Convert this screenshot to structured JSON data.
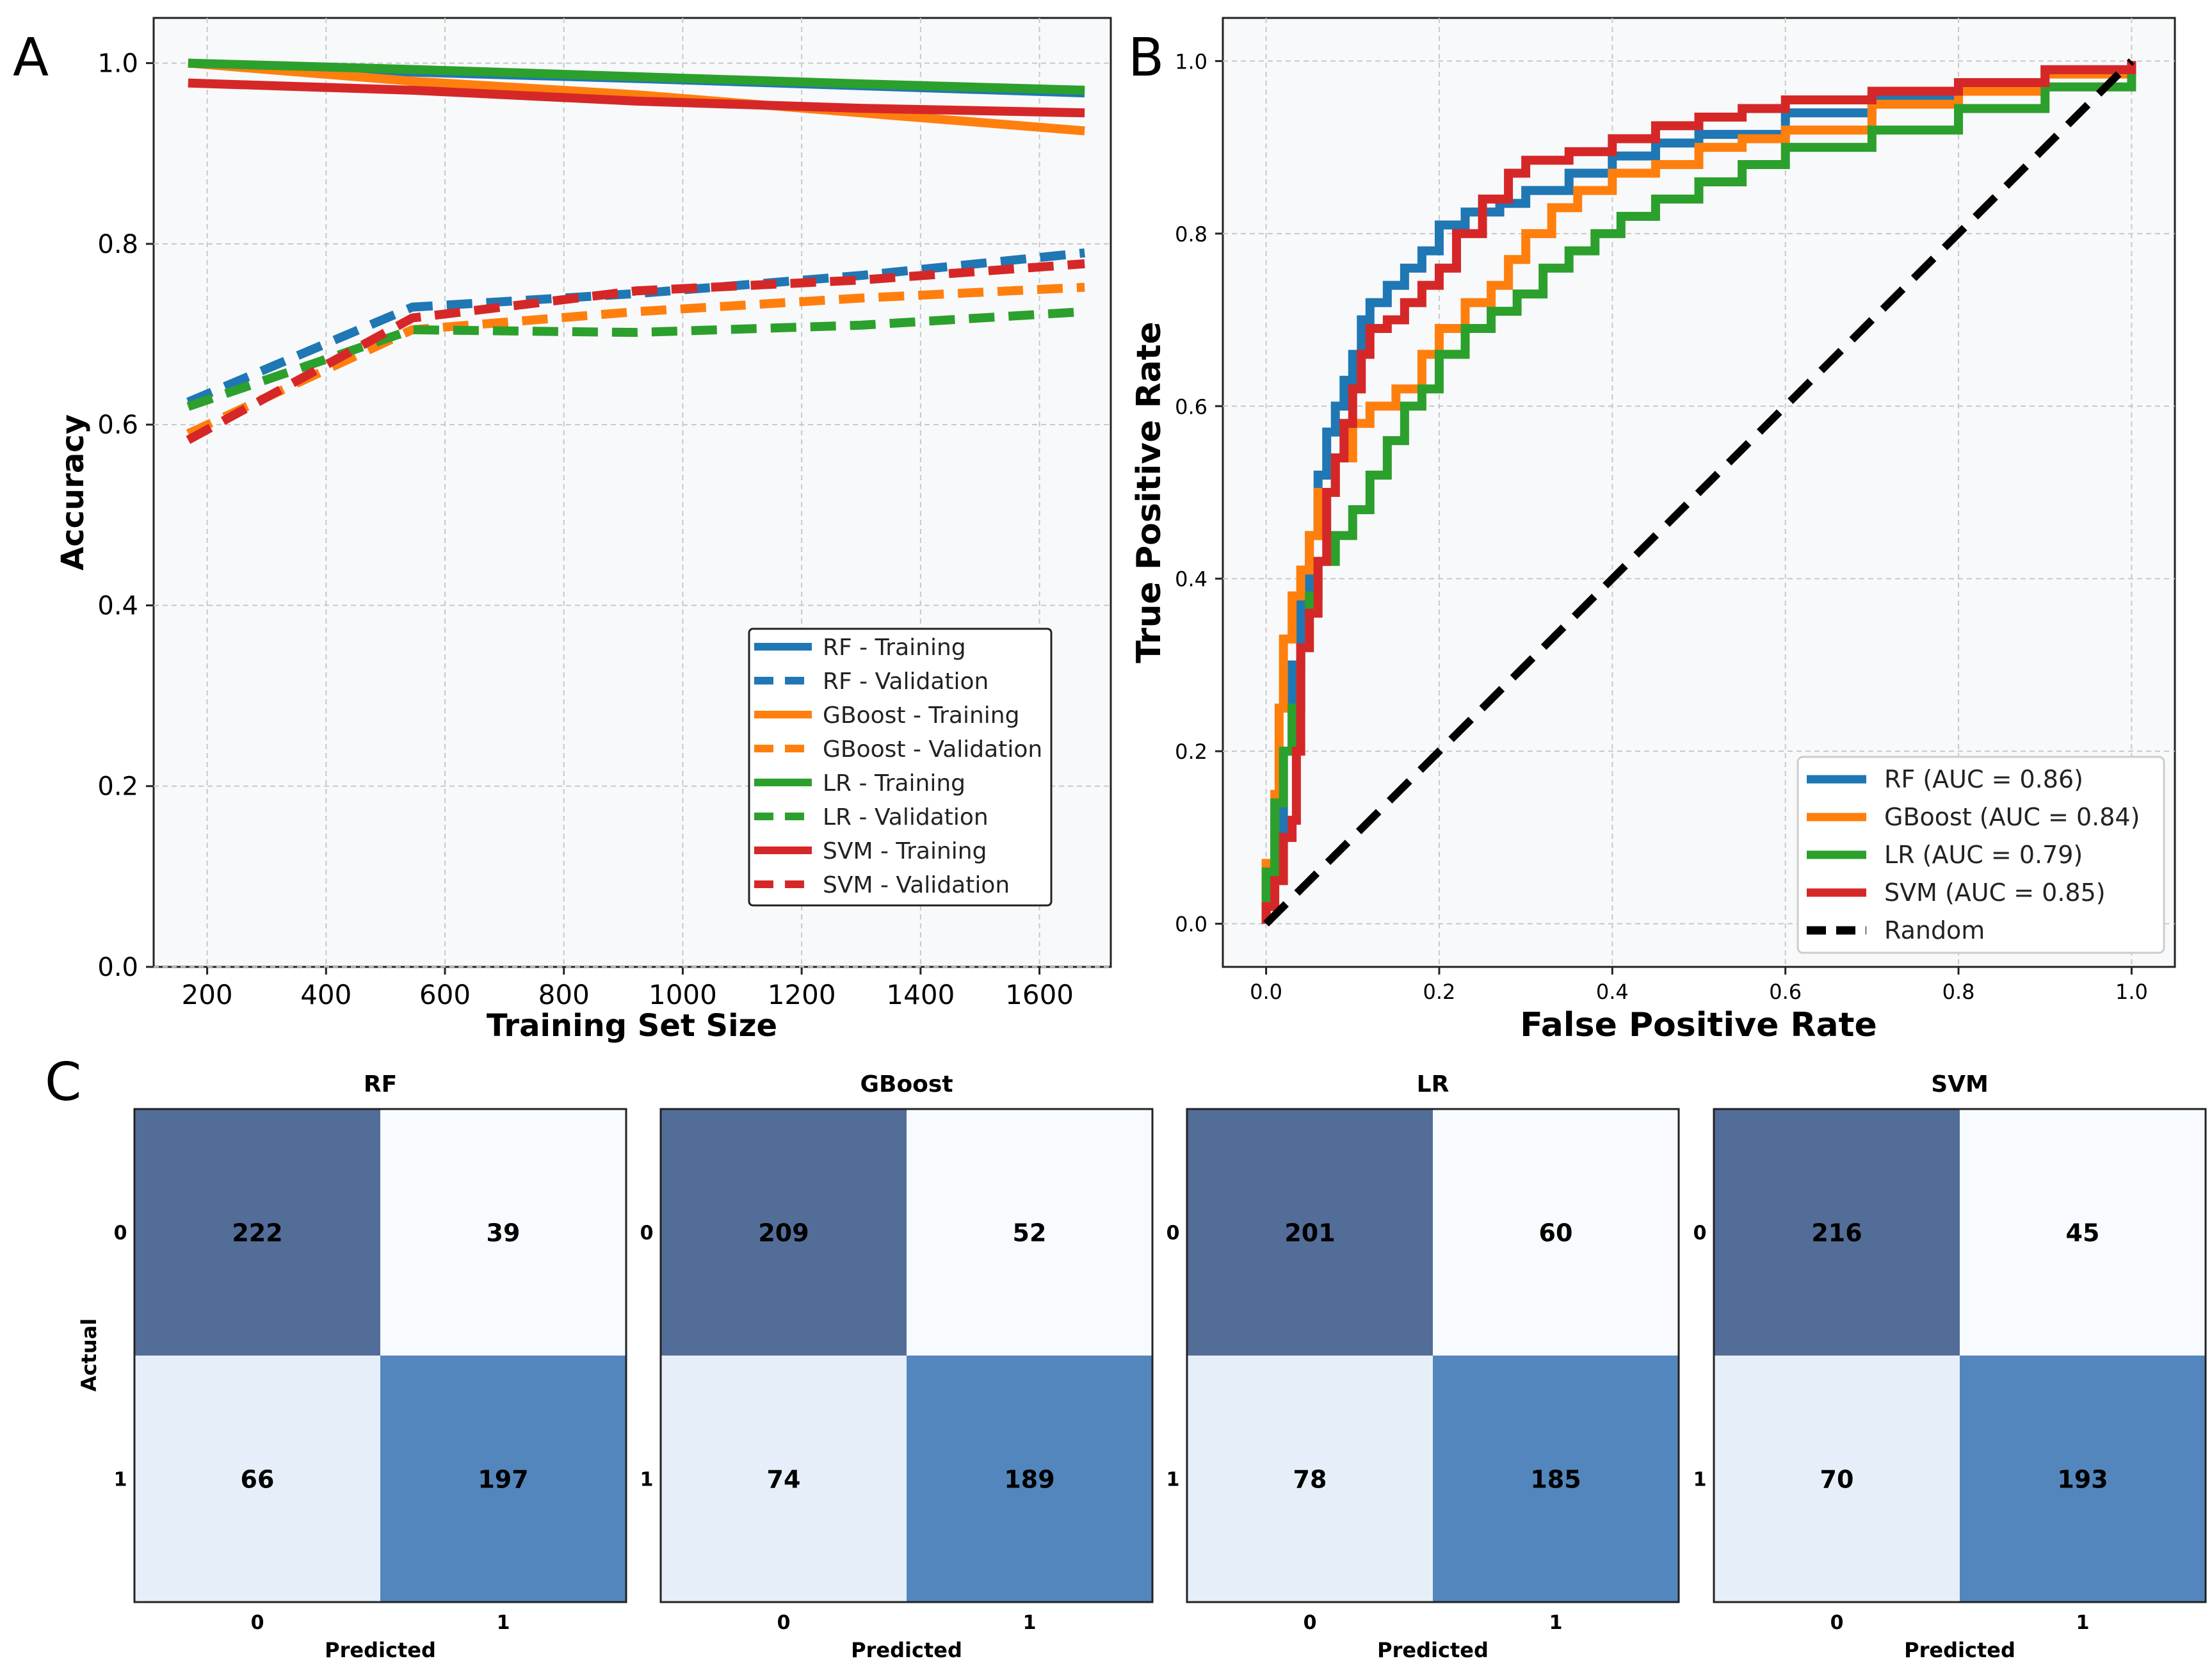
{
  "panels": {
    "a": "A",
    "b": "B",
    "c": "C"
  },
  "chart_data": [
    {
      "type": "line",
      "panel": "A",
      "xlabel": "Training Set Size",
      "ylabel": "Accuracy",
      "xlim": [
        110,
        1720
      ],
      "ylim": [
        0.0,
        1.05
      ],
      "xticks": [
        200,
        400,
        600,
        800,
        1000,
        1200,
        1400,
        1600
      ],
      "xtick_labels": [
        "200",
        "400",
        "600",
        "800",
        "1000",
        "1200",
        "1400",
        "1600"
      ],
      "yticks": [
        0.0,
        0.2,
        0.4,
        0.6,
        0.8,
        1.0
      ],
      "ytick_labels": [
        "0.0",
        "0.2",
        "0.4",
        "0.6",
        "0.8",
        "1.0"
      ],
      "grid": true,
      "legend_position": "lower-right",
      "x": [
        168,
        545,
        922,
        1299,
        1676
      ],
      "series": [
        {
          "name": "RF - Training",
          "color": "#1f77b4",
          "style": "solid",
          "values": [
            1.0,
            0.99,
            0.983,
            0.975,
            0.967
          ]
        },
        {
          "name": "RF - Validation",
          "color": "#1f77b4",
          "style": "dashed",
          "values": [
            0.625,
            0.73,
            0.745,
            0.765,
            0.79
          ]
        },
        {
          "name": "GBoost - Training",
          "color": "#ff7f0e",
          "style": "solid",
          "values": [
            1.0,
            0.98,
            0.965,
            0.945,
            0.925
          ]
        },
        {
          "name": "GBoost - Validation",
          "color": "#ff7f0e",
          "style": "dashed",
          "values": [
            0.59,
            0.705,
            0.725,
            0.74,
            0.752
          ]
        },
        {
          "name": "LR - Training",
          "color": "#2ca02c",
          "style": "solid",
          "values": [
            1.0,
            0.993,
            0.985,
            0.977,
            0.97
          ]
        },
        {
          "name": "LR - Validation",
          "color": "#2ca02c",
          "style": "dashed",
          "values": [
            0.62,
            0.705,
            0.702,
            0.71,
            0.725
          ]
        },
        {
          "name": "SVM - Training",
          "color": "#d62728",
          "style": "solid",
          "values": [
            0.978,
            0.97,
            0.958,
            0.95,
            0.945
          ]
        },
        {
          "name": "SVM - Validation",
          "color": "#d62728",
          "style": "dashed",
          "values": [
            0.583,
            0.718,
            0.748,
            0.76,
            0.778
          ]
        }
      ]
    },
    {
      "type": "line",
      "panel": "B",
      "xlabel": "False Positive Rate",
      "ylabel": "True Positive Rate",
      "xlim": [
        -0.05,
        1.05
      ],
      "ylim": [
        -0.05,
        1.05
      ],
      "xticks": [
        0.0,
        0.2,
        0.4,
        0.6,
        0.8,
        1.0
      ],
      "xtick_labels": [
        "0.0",
        "0.2",
        "0.4",
        "0.6",
        "0.8",
        "1.0"
      ],
      "yticks": [
        0.0,
        0.2,
        0.4,
        0.6,
        0.8,
        1.0
      ],
      "ytick_labels": [
        "0.0",
        "0.2",
        "0.4",
        "0.6",
        "0.8",
        "1.0"
      ],
      "grid": true,
      "legend_position": "lower-right",
      "series": [
        {
          "name": "RF (AUC = 0.86)",
          "color": "#1f77b4",
          "style": "solid",
          "points": [
            [
              0,
              0
            ],
            [
              0,
              0.05
            ],
            [
              0.01,
              0.1
            ],
            [
              0.02,
              0.2
            ],
            [
              0.03,
              0.3
            ],
            [
              0.04,
              0.38
            ],
            [
              0.05,
              0.45
            ],
            [
              0.06,
              0.52
            ],
            [
              0.07,
              0.57
            ],
            [
              0.08,
              0.6
            ],
            [
              0.09,
              0.63
            ],
            [
              0.1,
              0.66
            ],
            [
              0.11,
              0.7
            ],
            [
              0.12,
              0.72
            ],
            [
              0.14,
              0.74
            ],
            [
              0.16,
              0.76
            ],
            [
              0.18,
              0.78
            ],
            [
              0.2,
              0.81
            ],
            [
              0.23,
              0.825
            ],
            [
              0.27,
              0.835
            ],
            [
              0.3,
              0.85
            ],
            [
              0.35,
              0.87
            ],
            [
              0.4,
              0.89
            ],
            [
              0.45,
              0.905
            ],
            [
              0.5,
              0.915
            ],
            [
              0.6,
              0.94
            ],
            [
              0.7,
              0.96
            ],
            [
              0.8,
              0.975
            ],
            [
              0.9,
              0.99
            ],
            [
              1.0,
              1.0
            ]
          ]
        },
        {
          "name": "GBoost (AUC = 0.84)",
          "color": "#ff7f0e",
          "style": "solid",
          "points": [
            [
              0,
              0
            ],
            [
              0,
              0.07
            ],
            [
              0.01,
              0.15
            ],
            [
              0.015,
              0.25
            ],
            [
              0.02,
              0.33
            ],
            [
              0.03,
              0.38
            ],
            [
              0.04,
              0.41
            ],
            [
              0.05,
              0.45
            ],
            [
              0.06,
              0.5
            ],
            [
              0.08,
              0.54
            ],
            [
              0.1,
              0.58
            ],
            [
              0.12,
              0.6
            ],
            [
              0.15,
              0.62
            ],
            [
              0.18,
              0.66
            ],
            [
              0.2,
              0.69
            ],
            [
              0.23,
              0.72
            ],
            [
              0.26,
              0.74
            ],
            [
              0.28,
              0.77
            ],
            [
              0.3,
              0.8
            ],
            [
              0.33,
              0.83
            ],
            [
              0.36,
              0.85
            ],
            [
              0.4,
              0.87
            ],
            [
              0.45,
              0.88
            ],
            [
              0.5,
              0.9
            ],
            [
              0.55,
              0.91
            ],
            [
              0.6,
              0.92
            ],
            [
              0.7,
              0.95
            ],
            [
              0.8,
              0.965
            ],
            [
              0.9,
              0.985
            ],
            [
              1.0,
              1.0
            ]
          ]
        },
        {
          "name": "LR (AUC = 0.79)",
          "color": "#2ca02c",
          "style": "solid",
          "points": [
            [
              0,
              0
            ],
            [
              0,
              0.06
            ],
            [
              0.01,
              0.14
            ],
            [
              0.02,
              0.2
            ],
            [
              0.03,
              0.25
            ],
            [
              0.04,
              0.32
            ],
            [
              0.05,
              0.38
            ],
            [
              0.06,
              0.42
            ],
            [
              0.08,
              0.45
            ],
            [
              0.1,
              0.48
            ],
            [
              0.12,
              0.52
            ],
            [
              0.14,
              0.56
            ],
            [
              0.16,
              0.6
            ],
            [
              0.18,
              0.62
            ],
            [
              0.2,
              0.66
            ],
            [
              0.23,
              0.69
            ],
            [
              0.26,
              0.71
            ],
            [
              0.29,
              0.73
            ],
            [
              0.32,
              0.76
            ],
            [
              0.35,
              0.78
            ],
            [
              0.38,
              0.8
            ],
            [
              0.41,
              0.82
            ],
            [
              0.45,
              0.84
            ],
            [
              0.5,
              0.86
            ],
            [
              0.55,
              0.88
            ],
            [
              0.6,
              0.9
            ],
            [
              0.7,
              0.92
            ],
            [
              0.8,
              0.945
            ],
            [
              0.9,
              0.97
            ],
            [
              1.0,
              1.0
            ]
          ]
        },
        {
          "name": "SVM (AUC = 0.85)",
          "color": "#d62728",
          "style": "solid",
          "points": [
            [
              0,
              0
            ],
            [
              0,
              0.02
            ],
            [
              0.01,
              0.05
            ],
            [
              0.02,
              0.1
            ],
            [
              0.03,
              0.12
            ],
            [
              0.035,
              0.2
            ],
            [
              0.04,
              0.32
            ],
            [
              0.05,
              0.36
            ],
            [
              0.06,
              0.42
            ],
            [
              0.07,
              0.5
            ],
            [
              0.08,
              0.54
            ],
            [
              0.09,
              0.58
            ],
            [
              0.1,
              0.62
            ],
            [
              0.11,
              0.66
            ],
            [
              0.12,
              0.69
            ],
            [
              0.14,
              0.7
            ],
            [
              0.16,
              0.72
            ],
            [
              0.18,
              0.74
            ],
            [
              0.2,
              0.76
            ],
            [
              0.22,
              0.8
            ],
            [
              0.25,
              0.84
            ],
            [
              0.28,
              0.87
            ],
            [
              0.3,
              0.885
            ],
            [
              0.35,
              0.895
            ],
            [
              0.4,
              0.91
            ],
            [
              0.45,
              0.925
            ],
            [
              0.5,
              0.935
            ],
            [
              0.55,
              0.945
            ],
            [
              0.6,
              0.955
            ],
            [
              0.7,
              0.965
            ],
            [
              0.8,
              0.975
            ],
            [
              0.9,
              0.99
            ],
            [
              1.0,
              1.0
            ]
          ]
        },
        {
          "name": "Random",
          "color": "#000000",
          "style": "dashed",
          "points": [
            [
              0,
              0
            ],
            [
              1,
              1
            ]
          ]
        }
      ]
    },
    {
      "type": "heatmap",
      "panel": "C",
      "xlabel": "Predicted",
      "ylabel": "Actual",
      "tick_labels": [
        "0",
        "1"
      ],
      "matrices": [
        {
          "title": "RF",
          "values": [
            [
              222,
              39
            ],
            [
              66,
              197
            ]
          ]
        },
        {
          "title": "GBoost",
          "values": [
            [
              209,
              52
            ],
            [
              74,
              189
            ]
          ]
        },
        {
          "title": "LR",
          "values": [
            [
              201,
              60
            ],
            [
              78,
              185
            ]
          ]
        },
        {
          "title": "SVM",
          "values": [
            [
              216,
              45
            ],
            [
              70,
              193
            ]
          ]
        }
      ],
      "cell_colors": {
        "high": "#536d99",
        "mid": "#5386bd",
        "low": "#f7fbff",
        "lowmid": "#e6eff9"
      }
    }
  ]
}
